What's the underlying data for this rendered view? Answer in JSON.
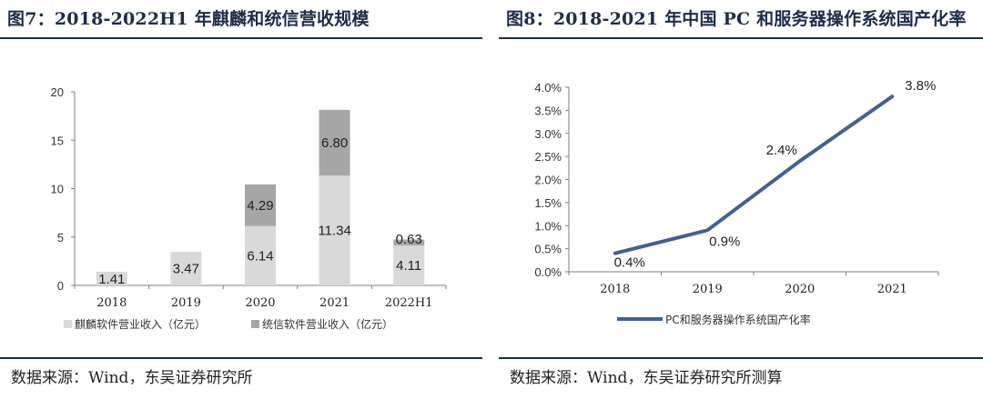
{
  "left_panel": {
    "title": "图7：2018-2022H1 年麒麟和统信营收规模",
    "source": "数据来源：Wind，东吴证券研究所"
  },
  "right_panel": {
    "title": "图8：2018-2021 年中国 PC 和服务器操作系统国产化率",
    "source": "数据来源：Wind，东吴证券研究所测算"
  },
  "chart_data": [
    {
      "type": "bar",
      "stacked": true,
      "categories": [
        "2018",
        "2019",
        "2020",
        "2021",
        "2022H1"
      ],
      "series": [
        {
          "name": "麒麟软件营业收入（亿元）",
          "values": [
            1.41,
            3.47,
            6.14,
            11.34,
            4.11
          ],
          "labels": [
            "1.41",
            "3.47",
            "6.14",
            "11.34",
            "4.11"
          ],
          "color": "#d9d9d9"
        },
        {
          "name": "统信软件营业收入（亿元）",
          "values": [
            null,
            null,
            4.29,
            6.8,
            0.63
          ],
          "labels": [
            "",
            "",
            "4.29",
            "6.80",
            "0.63"
          ],
          "color": "#a6a6a6"
        }
      ],
      "ylim": [
        0,
        20
      ],
      "yticks": [
        "0",
        "5",
        "10",
        "15",
        "20"
      ],
      "grid": false,
      "legend": "bottom"
    },
    {
      "type": "line",
      "x": [
        "2018",
        "2019",
        "2020",
        "2021"
      ],
      "series": [
        {
          "name": "PC和服务器操作系统国产化率",
          "values": [
            0.4,
            0.9,
            2.4,
            3.8
          ],
          "labels": [
            "0.4%",
            "0.9%",
            "2.4%",
            "3.8%"
          ],
          "color": "#44618f"
        }
      ],
      "ylim": [
        0,
        4.0
      ],
      "yticks": [
        "0.0%",
        "0.5%",
        "1.0%",
        "1.5%",
        "2.0%",
        "2.5%",
        "3.0%",
        "3.5%",
        "4.0%"
      ],
      "grid": false,
      "legend": "bottom"
    }
  ]
}
